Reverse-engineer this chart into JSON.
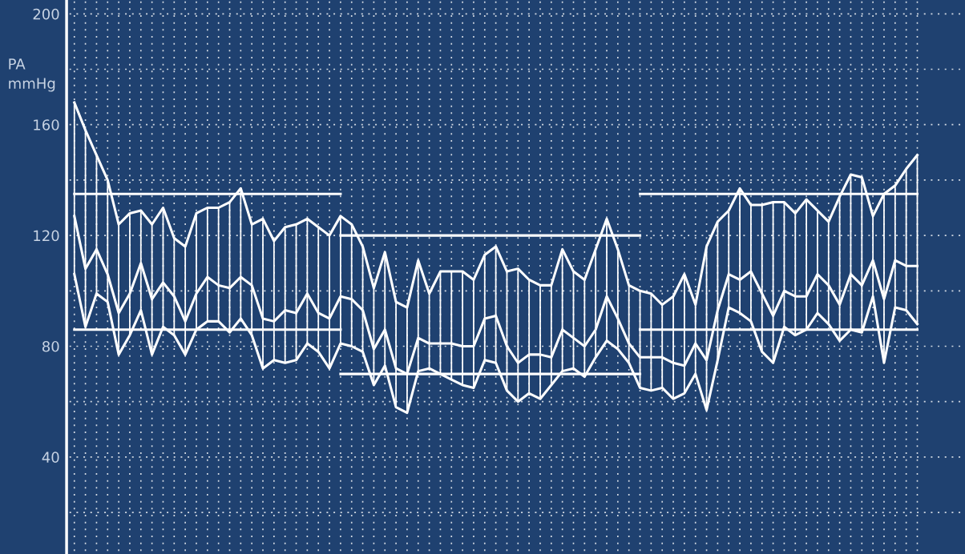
{
  "chart_data": {
    "type": "line",
    "ylabel": "PA\nmmHg",
    "categories": [
      null,
      null,
      null,
      null,
      null,
      null,
      null,
      null,
      null,
      null,
      null,
      null,
      null,
      null,
      null,
      null,
      null,
      null,
      null,
      null,
      null,
      null,
      null,
      null,
      null,
      null,
      null,
      null,
      null,
      null,
      null,
      null,
      null,
      null,
      null,
      null,
      null,
      null,
      null,
      null,
      null,
      null,
      null,
      null,
      null,
      null,
      null,
      null,
      null,
      null,
      null,
      null,
      null,
      null,
      null,
      null,
      null,
      null,
      null,
      null,
      null,
      null,
      null,
      null,
      null,
      null,
      null,
      null,
      null,
      null,
      null,
      null,
      null,
      null,
      null,
      null,
      null
    ],
    "series": [
      {
        "color": "#ffffff",
        "values": [
          168,
          158,
          149,
          140,
          124,
          128,
          129,
          124,
          130,
          119,
          116,
          128,
          130,
          130,
          132,
          137,
          124,
          126,
          118,
          123,
          124,
          126,
          123,
          120,
          127,
          124,
          116,
          101,
          114,
          96,
          94,
          111,
          99,
          107,
          107,
          107,
          104,
          113,
          116,
          107,
          108,
          104,
          102,
          102,
          115,
          107,
          104,
          115,
          126,
          115,
          102,
          100,
          99,
          95,
          98,
          106,
          95,
          116,
          125,
          129,
          137,
          131,
          131,
          132,
          132,
          128,
          133,
          129,
          125,
          134,
          142,
          141,
          127,
          135,
          138,
          144,
          149
        ]
      },
      {
        "color": "#ffffff",
        "values": [
          127,
          108,
          115,
          106,
          92,
          99,
          110,
          97,
          103,
          98,
          89,
          99,
          105,
          102,
          101,
          105,
          102,
          90,
          89,
          93,
          92,
          99,
          92,
          90,
          98,
          97,
          93,
          79,
          86,
          72,
          70,
          83,
          81,
          81,
          81,
          80,
          80,
          90,
          91,
          80,
          74,
          77,
          77,
          76,
          86,
          83,
          80,
          86,
          98,
          90,
          81,
          76,
          76,
          76,
          74,
          73,
          81,
          75,
          93,
          106,
          104,
          107,
          99,
          91,
          100,
          98,
          98,
          106,
          102,
          95,
          106,
          102,
          111,
          97,
          111,
          109,
          109
        ],
        "errors": [
          [
            106,
            168
          ],
          [
            87,
            158
          ],
          [
            99,
            149
          ],
          [
            96,
            140
          ],
          [
            77,
            124
          ],
          [
            84,
            128
          ],
          [
            93,
            129
          ],
          [
            77,
            124
          ],
          [
            87,
            130
          ],
          [
            84,
            119
          ],
          [
            77,
            116
          ],
          [
            86,
            128
          ],
          [
            89,
            130
          ],
          [
            89,
            130
          ],
          [
            85,
            132
          ],
          [
            90,
            137
          ],
          [
            84,
            124
          ],
          [
            72,
            126
          ],
          [
            75,
            118
          ],
          [
            74,
            123
          ],
          [
            75,
            124
          ],
          [
            81,
            126
          ],
          [
            78,
            123
          ],
          [
            72,
            120
          ],
          [
            81,
            127
          ],
          [
            80,
            124
          ],
          [
            78,
            116
          ],
          [
            66,
            101
          ],
          [
            73,
            114
          ],
          [
            58,
            96
          ],
          [
            56,
            94
          ],
          [
            71,
            111
          ],
          [
            72,
            99
          ],
          [
            70,
            107
          ],
          [
            68,
            107
          ],
          [
            66,
            107
          ],
          [
            65,
            104
          ],
          [
            75,
            113
          ],
          [
            74,
            116
          ],
          [
            64,
            107
          ],
          [
            60,
            108
          ],
          [
            63,
            104
          ],
          [
            61,
            102
          ],
          [
            66,
            102
          ],
          [
            71,
            115
          ],
          [
            72,
            107
          ],
          [
            69,
            104
          ],
          [
            76,
            115
          ],
          [
            82,
            126
          ],
          [
            79,
            115
          ],
          [
            74,
            102
          ],
          [
            65,
            100
          ],
          [
            64,
            99
          ],
          [
            65,
            95
          ],
          [
            61,
            98
          ],
          [
            63,
            106
          ],
          [
            70,
            95
          ],
          [
            57,
            116
          ],
          [
            75,
            125
          ],
          [
            94,
            129
          ],
          [
            92,
            137
          ],
          [
            89,
            131
          ],
          [
            78,
            131
          ],
          [
            74,
            132
          ],
          [
            87,
            132
          ],
          [
            84,
            128
          ],
          [
            86,
            133
          ],
          [
            92,
            129
          ],
          [
            88,
            125
          ],
          [
            82,
            134
          ],
          [
            86,
            142
          ],
          [
            85,
            141
          ],
          [
            98,
            127
          ],
          [
            74,
            135
          ],
          [
            94,
            138
          ],
          [
            93,
            144
          ],
          [
            88,
            149
          ]
        ]
      },
      {
        "color": "#ffffff",
        "values": [
          106,
          87,
          99,
          96,
          77,
          84,
          93,
          77,
          87,
          84,
          77,
          86,
          89,
          89,
          85,
          90,
          84,
          72,
          75,
          74,
          75,
          81,
          78,
          72,
          81,
          80,
          78,
          66,
          73,
          58,
          56,
          71,
          72,
          70,
          68,
          66,
          65,
          75,
          74,
          64,
          60,
          63,
          61,
          66,
          71,
          72,
          69,
          76,
          82,
          79,
          74,
          65,
          64,
          65,
          61,
          63,
          70,
          57,
          75,
          94,
          92,
          89,
          78,
          74,
          87,
          84,
          86,
          92,
          88,
          82,
          86,
          85,
          98,
          74,
          94,
          93,
          88
        ]
      },
      {
        "color": "#ffffff",
        "values": [
          135,
          135,
          135,
          135,
          135,
          135,
          135,
          135,
          135,
          135,
          135,
          135,
          135,
          135,
          135,
          135,
          135,
          135,
          135,
          135,
          135,
          135,
          135,
          135,
          135,
          null,
          null,
          null,
          null,
          null,
          null,
          null,
          null,
          null,
          null,
          null,
          null,
          null,
          null,
          null,
          null,
          null,
          null,
          null,
          null,
          null,
          null,
          null,
          null,
          null,
          null,
          null,
          null,
          null,
          null,
          null,
          null,
          null,
          null,
          null,
          null,
          null,
          null,
          null,
          null,
          null,
          null,
          null,
          null,
          null,
          null,
          null,
          null,
          null,
          null,
          null,
          null
        ]
      },
      {
        "color": "#ffffff",
        "values": [
          86,
          86,
          86,
          86,
          86,
          86,
          86,
          86,
          86,
          86,
          86,
          86,
          86,
          86,
          86,
          86,
          86,
          86,
          86,
          86,
          86,
          86,
          86,
          86,
          86,
          null,
          null,
          null,
          null,
          null,
          null,
          null,
          null,
          null,
          null,
          null,
          null,
          null,
          null,
          null,
          null,
          null,
          null,
          null,
          null,
          null,
          null,
          null,
          null,
          null,
          null,
          null,
          null,
          null,
          null,
          null,
          null,
          null,
          null,
          null,
          null,
          null,
          null,
          null,
          null,
          null,
          null,
          null,
          null,
          null,
          null,
          null,
          null,
          null,
          null,
          null,
          null
        ]
      },
      {
        "color": "#ffffff",
        "values": [
          null,
          null,
          null,
          null,
          null,
          null,
          null,
          null,
          null,
          null,
          null,
          null,
          null,
          null,
          null,
          null,
          null,
          null,
          null,
          null,
          null,
          null,
          null,
          null,
          120,
          120,
          120,
          120,
          120,
          120,
          120,
          120,
          120,
          120,
          120,
          120,
          120,
          120,
          120,
          120,
          120,
          120,
          120,
          120,
          120,
          120,
          120,
          120,
          120,
          120,
          120,
          120,
          null,
          null,
          null,
          null,
          null,
          null,
          null,
          null,
          null,
          null,
          null,
          null,
          null,
          null,
          null,
          null,
          null,
          null,
          null,
          null,
          null,
          null,
          null,
          null,
          null
        ]
      },
      {
        "color": "#ffffff",
        "values": [
          null,
          null,
          null,
          null,
          null,
          null,
          null,
          null,
          null,
          null,
          null,
          null,
          null,
          null,
          null,
          null,
          null,
          null,
          null,
          null,
          null,
          null,
          null,
          null,
          70,
          70,
          70,
          70,
          70,
          70,
          70,
          70,
          70,
          70,
          70,
          70,
          70,
          70,
          70,
          70,
          70,
          70,
          70,
          70,
          70,
          70,
          70,
          70,
          70,
          70,
          70,
          70,
          null,
          null,
          null,
          null,
          null,
          null,
          null,
          null,
          null,
          null,
          null,
          null,
          null,
          null,
          null,
          null,
          null,
          null,
          null,
          null,
          null,
          null,
          null,
          null,
          null
        ]
      },
      {
        "color": "#ffffff",
        "values": [
          null,
          null,
          null,
          null,
          null,
          null,
          null,
          null,
          null,
          null,
          null,
          null,
          null,
          null,
          null,
          null,
          null,
          null,
          null,
          null,
          null,
          null,
          null,
          null,
          null,
          null,
          null,
          null,
          null,
          null,
          null,
          null,
          null,
          null,
          null,
          null,
          null,
          null,
          null,
          null,
          null,
          null,
          null,
          null,
          null,
          null,
          null,
          null,
          null,
          null,
          null,
          135,
          135,
          135,
          135,
          135,
          135,
          135,
          135,
          135,
          135,
          135,
          135,
          135,
          135,
          135,
          135,
          135,
          135,
          135,
          135,
          135,
          135,
          135,
          135,
          135,
          135
        ]
      },
      {
        "color": "#ffffff",
        "values": [
          null,
          null,
          null,
          null,
          null,
          null,
          null,
          null,
          null,
          null,
          null,
          null,
          null,
          null,
          null,
          null,
          null,
          null,
          null,
          null,
          null,
          null,
          null,
          null,
          null,
          null,
          null,
          null,
          null,
          null,
          null,
          null,
          null,
          null,
          null,
          null,
          null,
          null,
          null,
          null,
          null,
          null,
          null,
          null,
          null,
          null,
          null,
          null,
          null,
          null,
          null,
          86,
          86,
          86,
          86,
          86,
          86,
          86,
          86,
          86,
          86,
          86,
          86,
          86,
          86,
          86,
          86,
          86,
          86,
          86,
          86,
          86,
          86,
          86,
          86,
          86,
          86
        ]
      }
    ],
    "ylim": [
      5,
      205
    ],
    "yticks": [
      {
        "value": 20,
        "label": null
      },
      40,
      {
        "value": 60,
        "label": null
      },
      80,
      {
        "value": 100,
        "label": null
      },
      120,
      {
        "value": 140,
        "label": null
      },
      160,
      {
        "value": 180,
        "label": null
      },
      200
    ],
    "grid": true,
    "tick_labels": "y",
    "marker": "none",
    "line_style": "solid"
  }
}
